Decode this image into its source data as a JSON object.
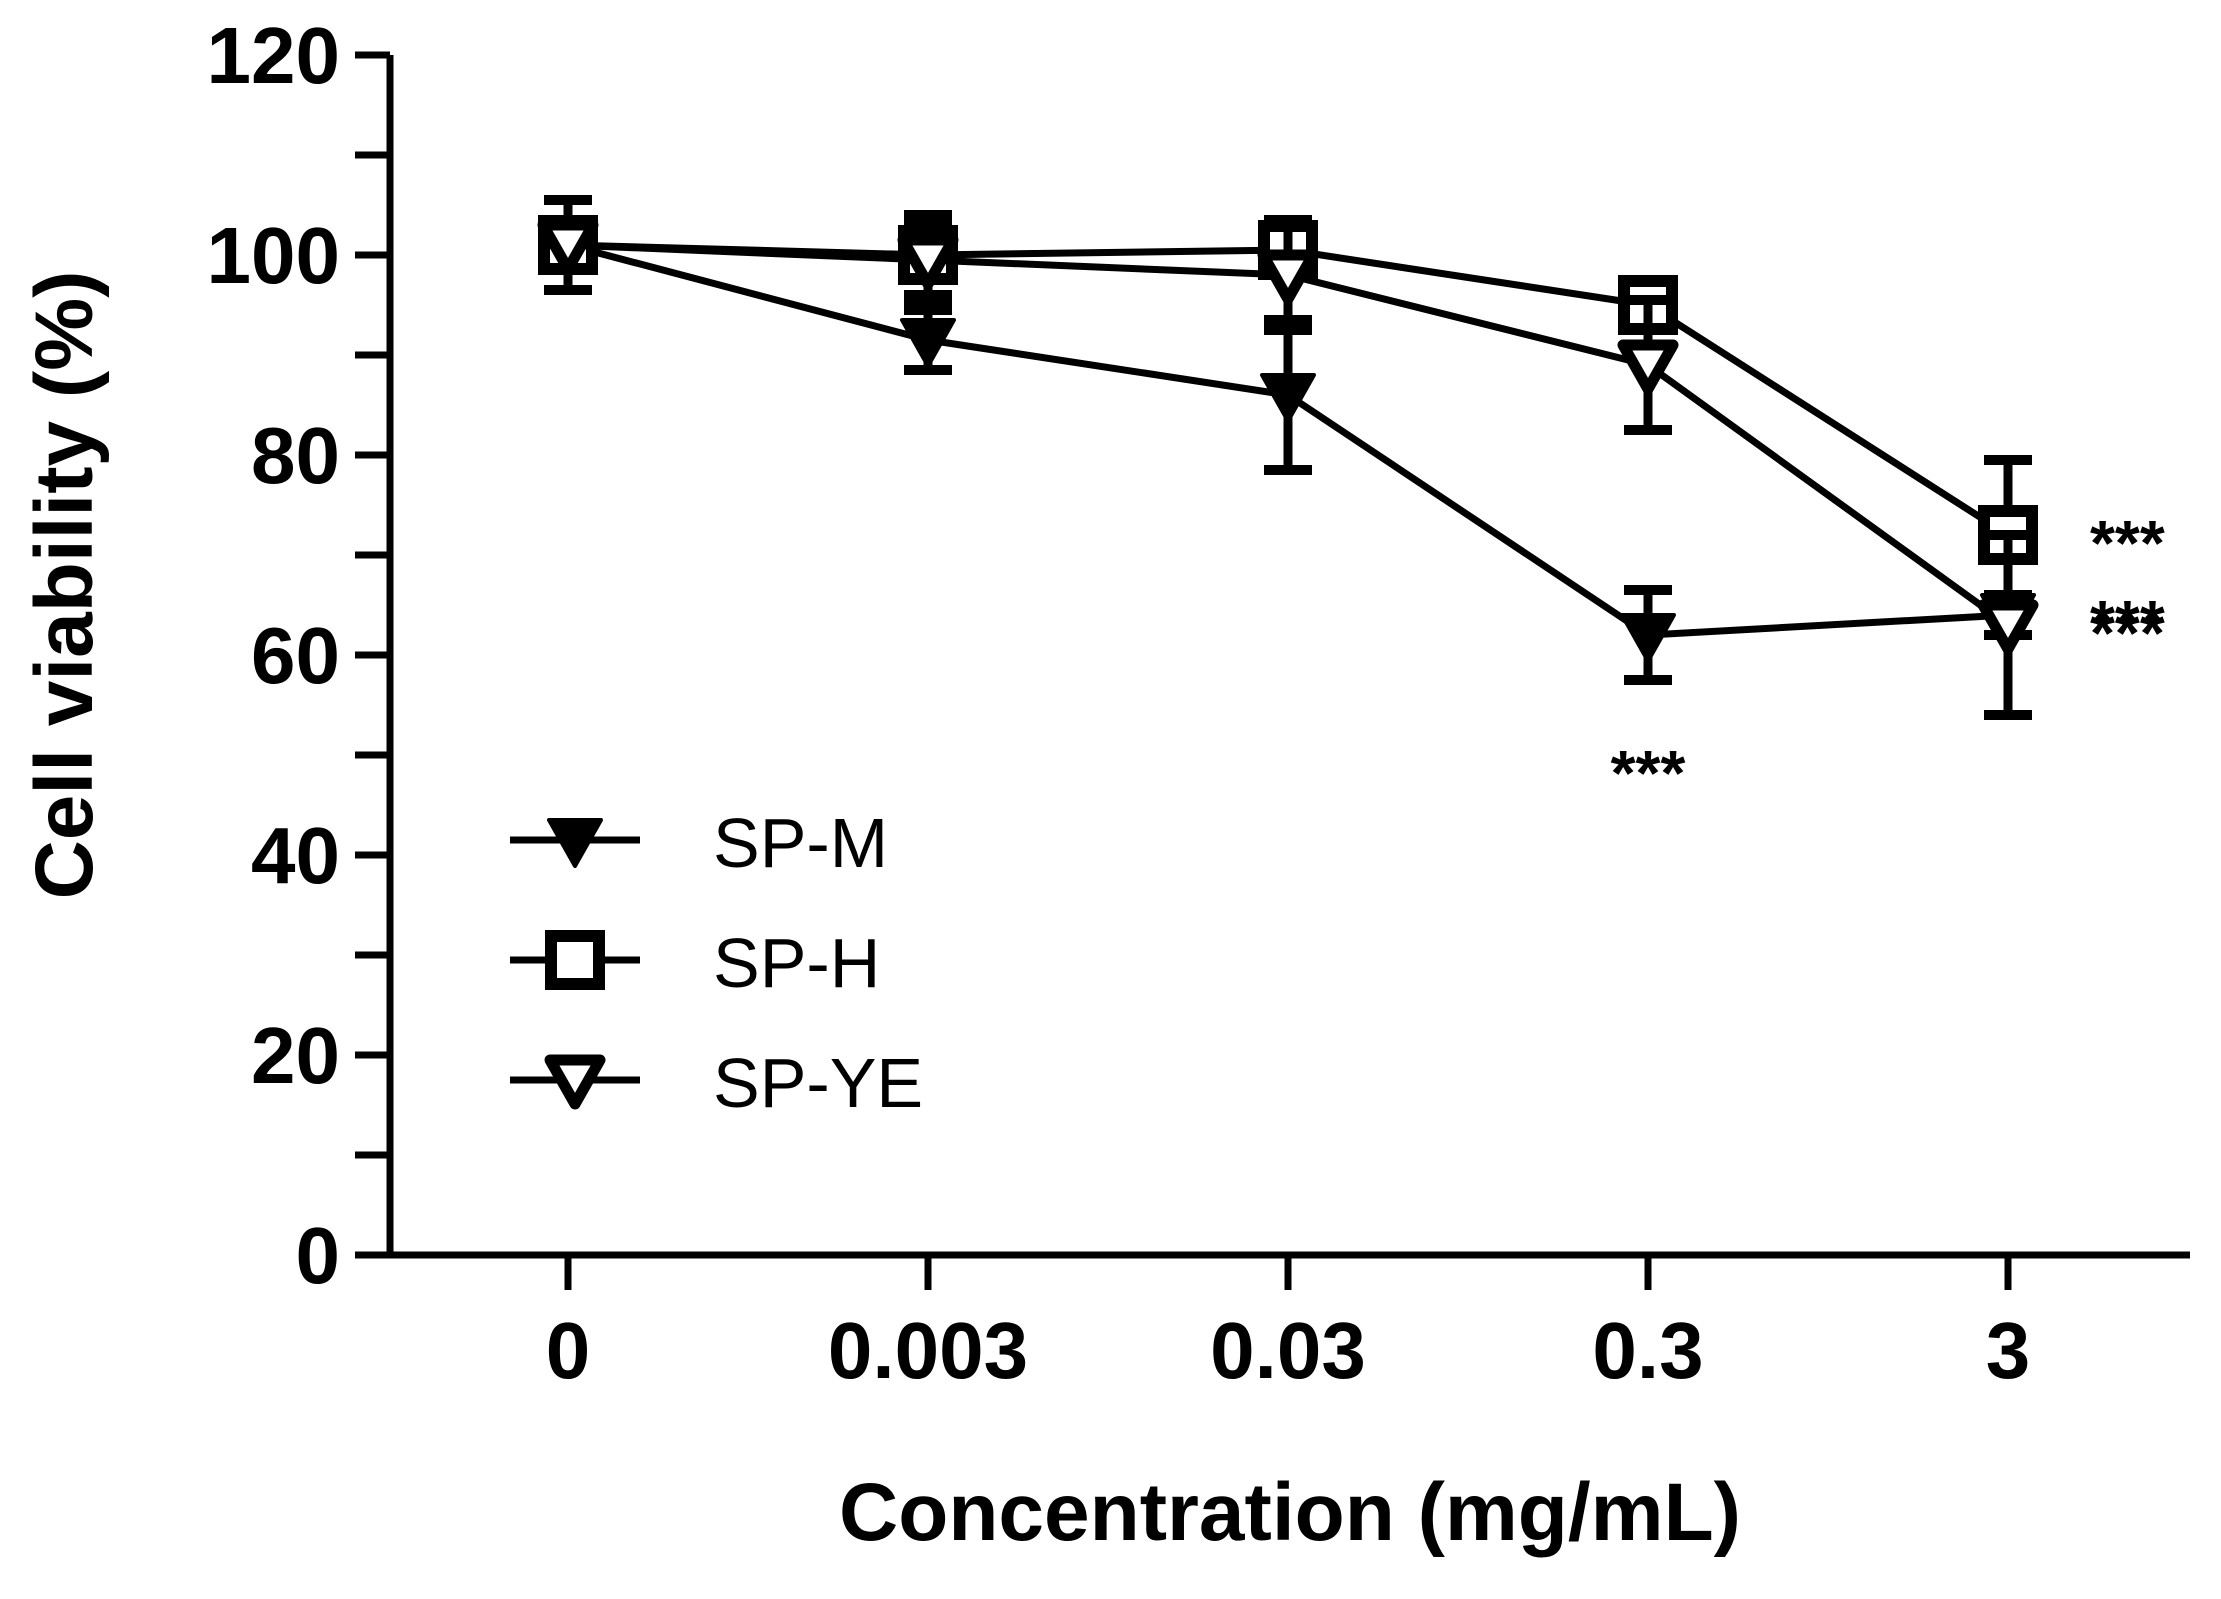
{
  "chart_data": {
    "type": "line",
    "title": "",
    "xlabel": "Concentration (mg/mL)",
    "ylabel": "Cell viability (%)",
    "categories": [
      "0",
      "0.003",
      "0.03",
      "0.3",
      "3"
    ],
    "ylim": [
      0,
      120
    ],
    "yticks": [
      0,
      20,
      40,
      60,
      80,
      100,
      120
    ],
    "grid": false,
    "legend_position": "lower-left",
    "series": [
      {
        "name": "SP-M",
        "marker": "triangle-down-filled",
        "values": [
          101,
          91.5,
          86,
          62,
          64
        ],
        "errors": [
          4.5,
          3,
          7.5,
          4.5,
          2
        ]
      },
      {
        "name": "SP-H",
        "marker": "square-open",
        "values": [
          101,
          100,
          100.5,
          95,
          72
        ],
        "errors": [
          4.5,
          4,
          2,
          2,
          7.5
        ]
      },
      {
        "name": "SP-YE",
        "marker": "triangle-down-open",
        "values": [
          101,
          99.5,
          98,
          89,
          63
        ],
        "errors": [
          4.5,
          4,
          5.5,
          6.5,
          9
        ]
      }
    ],
    "annotations": [
      {
        "text": "***",
        "category": "0.3",
        "series": "SP-M"
      },
      {
        "text": "***",
        "category": "3",
        "series": "SP-H"
      },
      {
        "text": "***",
        "category": "3",
        "series": "SP-YE"
      },
      {
        "text": "***",
        "category": "3",
        "series": "SP-M"
      }
    ],
    "colors": {
      "line": "#000000",
      "background": "#ffffff"
    }
  }
}
